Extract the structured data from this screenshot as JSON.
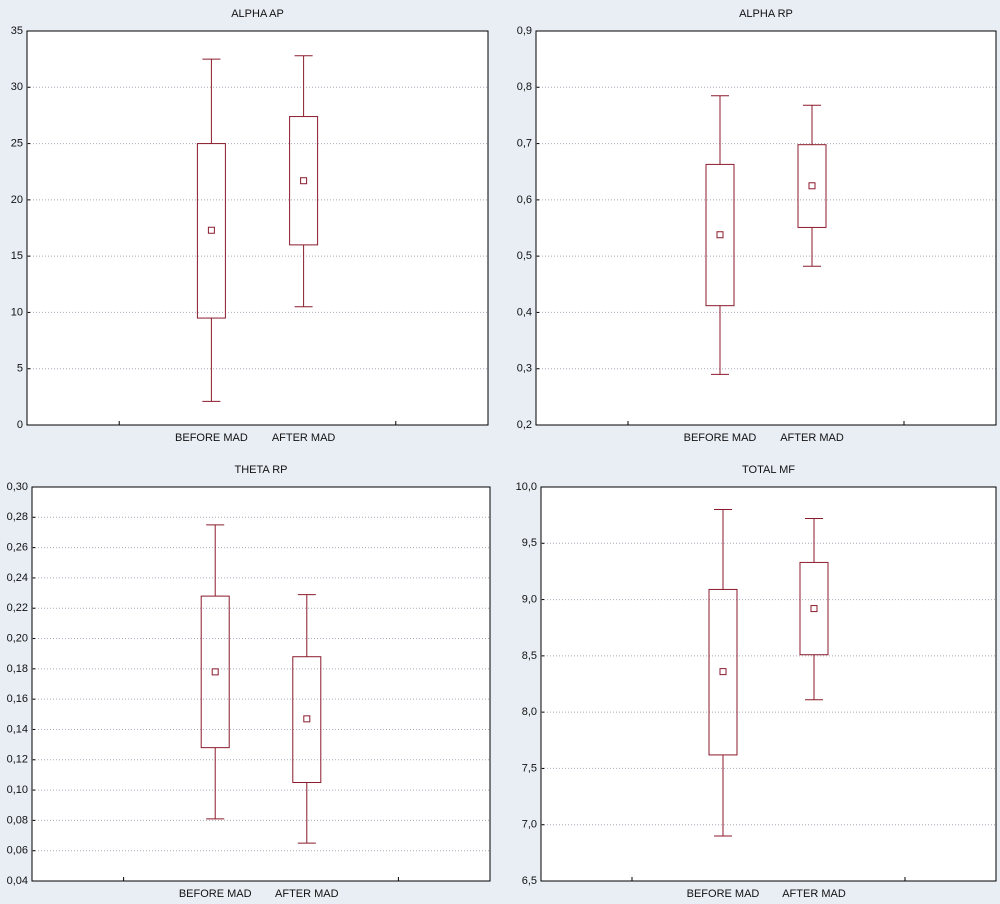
{
  "chart_data": [
    {
      "type": "box",
      "title": "ALPHA AP",
      "categories": [
        "BEFORE MAD",
        "AFTER MAD"
      ],
      "color": "#8b1a2b",
      "grid": true,
      "boxes": [
        {
          "min": 2.1,
          "box_low": 9.5,
          "center": 17.3,
          "box_high": 25,
          "max": 32.5
        },
        {
          "min": 10.5,
          "box_low": 16,
          "center": 21.7,
          "box_high": 27.4,
          "max": 32.8
        }
      ],
      "ylim": [
        0,
        35
      ],
      "yticks": [
        0,
        5,
        10,
        15,
        20,
        25,
        30,
        35
      ]
    },
    {
      "type": "box",
      "title": "ALPHA RP",
      "categories": [
        "BEFORE MAD",
        "AFTER MAD"
      ],
      "color": "#8b1a2b",
      "grid": true,
      "boxes": [
        {
          "min": 0.29,
          "box_low": 0.412,
          "center": 0.538,
          "box_high": 0.663,
          "max": 0.785
        },
        {
          "min": 0.482,
          "box_low": 0.551,
          "center": 0.625,
          "box_high": 0.698,
          "max": 0.768
        }
      ],
      "ylim": [
        0.2,
        0.9
      ],
      "yticks": [
        {
          "value": 0.2,
          "label": "0,2"
        },
        {
          "value": 0.3,
          "label": "0,3"
        },
        {
          "value": 0.4,
          "label": "0,4"
        },
        {
          "value": 0.5,
          "label": "0,5"
        },
        {
          "value": 0.6,
          "label": "0,6"
        },
        {
          "value": 0.7,
          "label": "0,7"
        },
        {
          "value": 0.8,
          "label": "0,8"
        },
        {
          "value": 0.9,
          "label": "0,9"
        }
      ]
    },
    {
      "type": "box",
      "title": "THETA RP",
      "categories": [
        "BEFORE MAD",
        "AFTER MAD"
      ],
      "color": "#8b1a2b",
      "grid": true,
      "boxes": [
        {
          "min": 0.081,
          "box_low": 0.128,
          "center": 0.178,
          "box_high": 0.228,
          "max": 0.275
        },
        {
          "min": 0.065,
          "box_low": 0.105,
          "center": 0.147,
          "box_high": 0.188,
          "max": 0.229
        }
      ],
      "ylim": [
        0.04,
        0.3
      ],
      "yticks": [
        {
          "value": 0.04,
          "label": "0,04"
        },
        {
          "value": 0.06,
          "label": "0,06"
        },
        {
          "value": 0.08,
          "label": "0,08"
        },
        {
          "value": 0.1,
          "label": "0,10"
        },
        {
          "value": 0.12,
          "label": "0,12"
        },
        {
          "value": 0.14,
          "label": "0,14"
        },
        {
          "value": 0.16,
          "label": "0,16"
        },
        {
          "value": 0.18,
          "label": "0,18"
        },
        {
          "value": 0.2,
          "label": "0,20"
        },
        {
          "value": 0.22,
          "label": "0,22"
        },
        {
          "value": 0.24,
          "label": "0,24"
        },
        {
          "value": 0.26,
          "label": "0,26"
        },
        {
          "value": 0.28,
          "label": "0,28"
        },
        {
          "value": 0.3,
          "label": "0,30"
        }
      ]
    },
    {
      "type": "box",
      "title": "TOTAL MF",
      "categories": [
        "BEFORE MAD",
        "AFTER MAD"
      ],
      "color": "#8b1a2b",
      "grid": true,
      "boxes": [
        {
          "min": 6.9,
          "box_low": 7.62,
          "center": 8.36,
          "box_high": 9.09,
          "max": 9.8
        },
        {
          "min": 8.11,
          "box_low": 8.51,
          "center": 8.92,
          "box_high": 9.33,
          "max": 9.72
        }
      ],
      "ylim": [
        6.5,
        10
      ],
      "yticks": [
        {
          "value": 6.5,
          "label": "6,5"
        },
        {
          "value": 7,
          "label": "7,0"
        },
        {
          "value": 7.5,
          "label": "7,5"
        },
        {
          "value": 8,
          "label": "8,0"
        },
        {
          "value": 8.5,
          "label": "8,5"
        },
        {
          "value": 9,
          "label": "9,0"
        },
        {
          "value": 9.5,
          "label": "9,5"
        },
        {
          "value": 10,
          "label": "10,0"
        }
      ]
    }
  ]
}
